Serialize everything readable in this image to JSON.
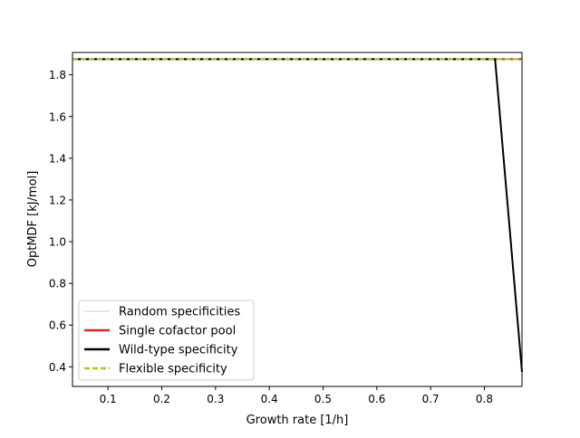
{
  "chart_data": {
    "type": "line",
    "title": "",
    "xlabel": "Growth rate [1/h]",
    "ylabel": "OptMDF [kJ/mol]",
    "xlim": [
      0.034,
      0.87
    ],
    "ylim": [
      0.306,
      1.907
    ],
    "xticks": [
      0.1,
      0.2,
      0.3,
      0.4,
      0.5,
      0.6,
      0.7,
      0.8
    ],
    "xtick_labels": [
      "0.1",
      "0.2",
      "0.3",
      "0.4",
      "0.5",
      "0.6",
      "0.7",
      "0.8"
    ],
    "yticks": [
      0.4,
      0.6,
      0.8,
      1.0,
      1.2,
      1.4,
      1.6,
      1.8
    ],
    "ytick_labels": [
      "0.4",
      "0.6",
      "0.8",
      "1.0",
      "1.2",
      "1.4",
      "1.6",
      "1.8"
    ],
    "grid": false,
    "legend_position": "lower left",
    "series": [
      {
        "name": "Random specificities",
        "color": "#add8e6",
        "style": "solid",
        "x": [
          0.034,
          0.87
        ],
        "y": [
          1.875,
          1.875
        ]
      },
      {
        "name": "Single cofactor pool",
        "color": "#d62728",
        "style": "solid",
        "x": [
          0.034,
          0.87
        ],
        "y": [
          1.875,
          1.875
        ]
      },
      {
        "name": "Wild-type specificity",
        "color": "#000000",
        "style": "solid",
        "x": [
          0.034,
          0.82,
          0.87
        ],
        "y": [
          1.875,
          1.875,
          0.375
        ]
      },
      {
        "name": "Flexible specificity",
        "color": "#9acd32",
        "style": "dashed",
        "x": [
          0.034,
          0.87
        ],
        "y": [
          1.875,
          1.875
        ]
      }
    ]
  }
}
